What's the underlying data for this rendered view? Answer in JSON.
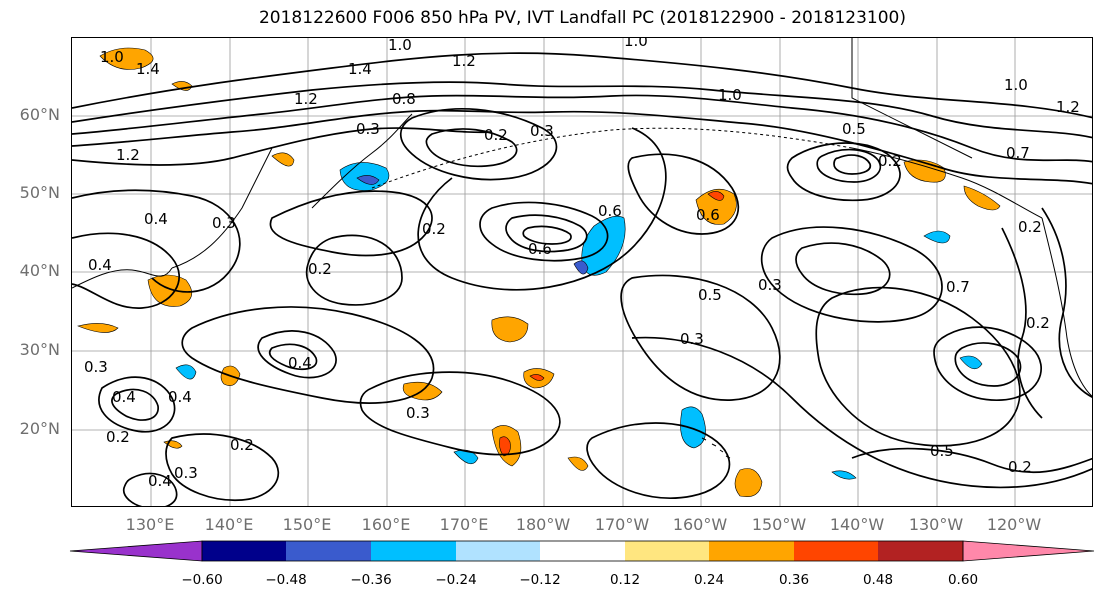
{
  "title": "2018122600 F006 850 hPa PV, IVT Landfall PC (2018122900 - 2018123100)",
  "map": {
    "lat_labels": [
      "60°N",
      "50°N",
      "40°N",
      "30°N",
      "20°N"
    ],
    "lon_labels": [
      "130°E",
      "140°E",
      "150°E",
      "160°E",
      "170°E",
      "180°W",
      "170°W",
      "160°W",
      "150°W",
      "140°W",
      "130°W",
      "120°W"
    ],
    "contour_labels": [
      "1.0",
      "1.4",
      "1.0",
      "1.2",
      "1.0",
      "1.4",
      "1.2",
      "1.2",
      "0.8",
      "0.3",
      "0.2",
      "0.3",
      "1.0",
      "0.5",
      "0.2",
      "0.7",
      "1.2",
      "1.0",
      "0.4",
      "0.3",
      "0.2",
      "0.6",
      "0.6",
      "0.6",
      "0.4",
      "0.2",
      "0.2",
      "0.5",
      "0.3",
      "0.7",
      "0.3",
      "0.4",
      "0.3",
      "0.4",
      "0.4",
      "0.2",
      "0.3",
      "0.2",
      "0.5",
      "0.2",
      "0.3",
      "0.2",
      "0.4"
    ]
  },
  "colorbar": {
    "ticks": [
      "−0.60",
      "−0.48",
      "−0.36",
      "−0.24",
      "−0.12",
      "0.12",
      "0.24",
      "0.36",
      "0.48",
      "0.60"
    ],
    "colors": [
      "#9932cc",
      "#00008b",
      "#3a5bcd",
      "#00bfff",
      "#b0e2ff",
      "#ffffff",
      "#ffe680",
      "#ffa500",
      "#ff4500",
      "#b22222",
      "#ff88aa"
    ]
  },
  "colors": {
    "contour": "#000000",
    "grid": "#9a9a9a",
    "coastline": "#000000",
    "tick_label": "#6f6f6f"
  }
}
